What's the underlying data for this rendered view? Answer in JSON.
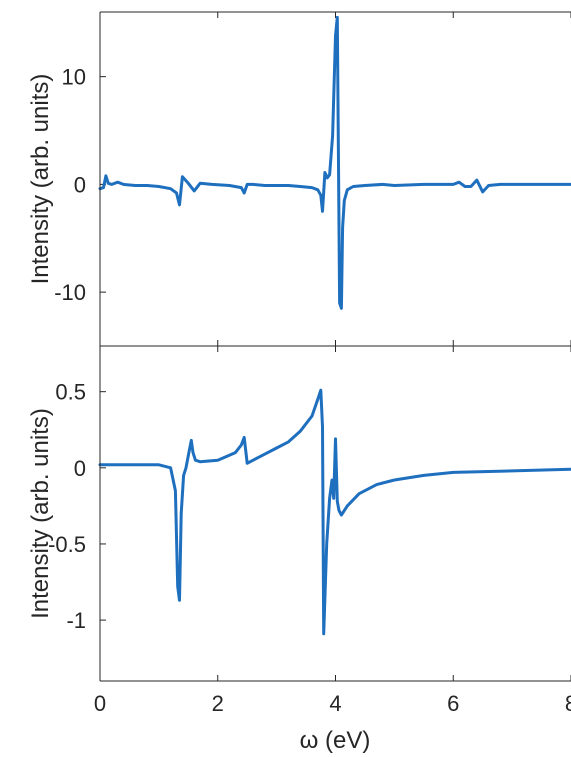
{
  "chart_data": [
    {
      "type": "line",
      "xlim": [
        0,
        8
      ],
      "ylim": [
        -15,
        16
      ],
      "xticks": [
        0,
        2,
        4,
        6,
        8
      ],
      "yticks": [
        10,
        0,
        -10
      ],
      "ytick_labels": [
        "10",
        "0",
        "-10"
      ],
      "ylabel": "Intensity (arb. units)",
      "xlabel": "",
      "series": [
        {
          "color": "#1f6fbf",
          "x": [
            0,
            0.06,
            0.1,
            0.14,
            0.2,
            0.3,
            0.4,
            0.6,
            0.8,
            1.0,
            1.2,
            1.3,
            1.35,
            1.4,
            1.5,
            1.6,
            1.7,
            1.9,
            2.2,
            2.4,
            2.45,
            2.5,
            2.6,
            2.8,
            3.0,
            3.2,
            3.4,
            3.6,
            3.7,
            3.75,
            3.78,
            3.82,
            3.86,
            3.9,
            3.95,
            4.0,
            4.03,
            4.05,
            4.07,
            4.1,
            4.12,
            4.15,
            4.2,
            4.3,
            4.5,
            4.8,
            5.0,
            5.5,
            6.0,
            6.1,
            6.2,
            6.3,
            6.4,
            6.5,
            6.6,
            6.8,
            7.0,
            7.5,
            8.0
          ],
          "y": [
            -0.4,
            -0.3,
            0.8,
            0.1,
            0.0,
            0.2,
            0.0,
            -0.1,
            -0.1,
            -0.2,
            -0.4,
            -0.8,
            -1.9,
            0.7,
            0.1,
            -0.6,
            0.1,
            0.0,
            -0.1,
            -0.3,
            -0.8,
            0.0,
            0.0,
            -0.1,
            -0.1,
            -0.1,
            -0.2,
            -0.3,
            -0.5,
            -1.0,
            -2.5,
            1.1,
            0.6,
            0.9,
            4.5,
            13.8,
            15.5,
            3.0,
            -11.0,
            -11.5,
            -4.0,
            -1.5,
            -0.5,
            -0.2,
            -0.1,
            0.0,
            -0.1,
            0.0,
            0.0,
            0.2,
            -0.2,
            -0.2,
            0.4,
            -0.7,
            -0.1,
            0.0,
            0.0,
            0.0,
            0.0
          ]
        }
      ]
    },
    {
      "type": "line",
      "xlim": [
        0,
        8
      ],
      "ylim": [
        -1.4,
        0.8
      ],
      "xticks": [
        0,
        2,
        4,
        6,
        8
      ],
      "xtick_labels": [
        "0",
        "2",
        "4",
        "6",
        "8"
      ],
      "yticks": [
        0.5,
        0,
        -0.5,
        -1
      ],
      "ytick_labels": [
        "0.5",
        "0",
        "-0.5",
        "-1"
      ],
      "ylabel": "Intensity (arb. units)",
      "xlabel": "ω (eV)",
      "series": [
        {
          "color": "#1f6fbf",
          "x": [
            0,
            0.5,
            1.0,
            1.2,
            1.28,
            1.32,
            1.35,
            1.38,
            1.42,
            1.46,
            1.5,
            1.55,
            1.58,
            1.62,
            1.7,
            2.0,
            2.3,
            2.4,
            2.45,
            2.5,
            2.6,
            2.8,
            3.0,
            3.2,
            3.4,
            3.6,
            3.7,
            3.75,
            3.78,
            3.8,
            3.85,
            3.9,
            3.94,
            3.97,
            4.0,
            4.03,
            4.06,
            4.1,
            4.2,
            4.4,
            4.7,
            5.0,
            5.5,
            6.0,
            7.0,
            8.0
          ],
          "y": [
            0.02,
            0.02,
            0.02,
            0.0,
            -0.15,
            -0.78,
            -0.87,
            -0.3,
            -0.05,
            0.0,
            0.08,
            0.18,
            0.1,
            0.05,
            0.04,
            0.05,
            0.1,
            0.15,
            0.2,
            0.03,
            0.05,
            0.09,
            0.13,
            0.17,
            0.24,
            0.34,
            0.45,
            0.51,
            0.27,
            -1.09,
            -0.5,
            -0.2,
            -0.08,
            -0.2,
            0.19,
            -0.22,
            -0.28,
            -0.31,
            -0.25,
            -0.17,
            -0.11,
            -0.08,
            -0.05,
            -0.03,
            -0.02,
            -0.01
          ]
        }
      ]
    }
  ]
}
